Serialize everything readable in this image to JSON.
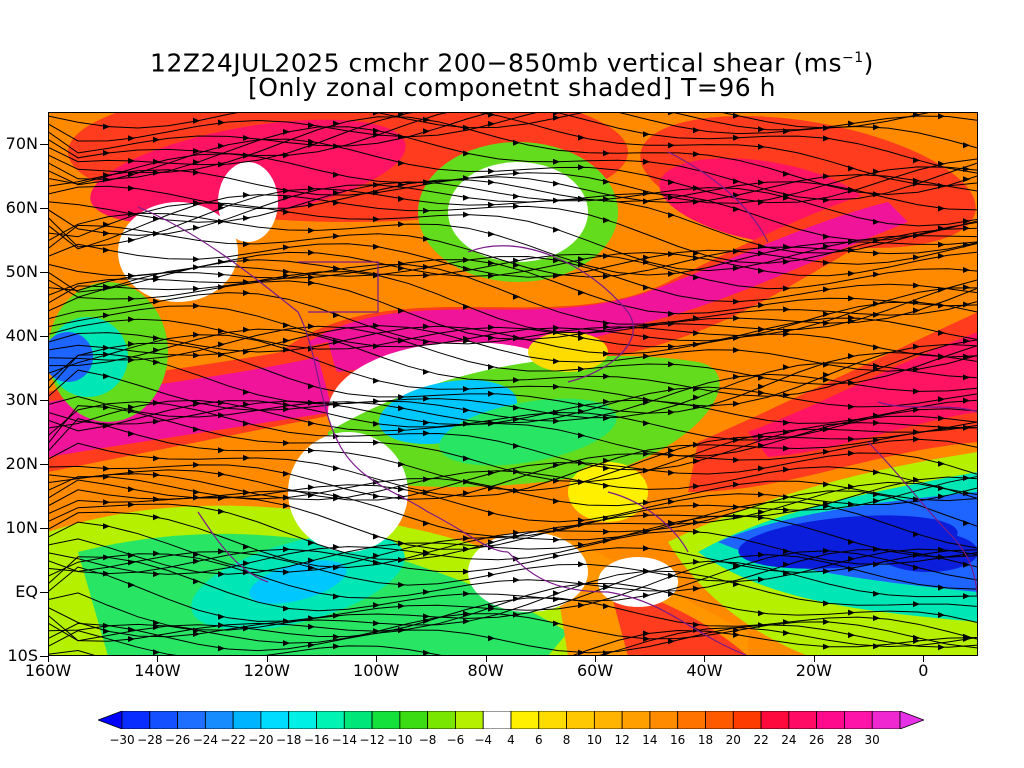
{
  "title": {
    "line1_pre": "12Z24JUL2025 cmchr 200−850mb vertical shear (ms",
    "line1_sup": "−1",
    "line1_post": ")",
    "line2": "[Only zonal componetnt shaded] T=96 h"
  },
  "map": {
    "lat_labels": [
      "70N",
      "60N",
      "50N",
      "40N",
      "30N",
      "20N",
      "10N",
      "EQ",
      "10S"
    ],
    "lat_values": [
      70,
      60,
      50,
      40,
      30,
      20,
      10,
      0,
      -10
    ],
    "lon_labels": [
      "160W",
      "140W",
      "120W",
      "100W",
      "80W",
      "60W",
      "40W",
      "20W",
      "0"
    ],
    "lon_values": [
      -160,
      -140,
      -120,
      -100,
      -80,
      -60,
      -40,
      -20,
      0
    ],
    "lon_range": [
      -160,
      10
    ],
    "lat_range": [
      -10,
      75
    ],
    "field": "zonal component of 200-850mb vertical shear",
    "streamlines": "shear vector streamlines",
    "coastline_color": "#7a1a8a"
  },
  "colorbar": {
    "labels": [
      "-30",
      "-28",
      "-26",
      "-24",
      "-22",
      "-20",
      "-18",
      "-16",
      "-14",
      "-12",
      "-10",
      "-8",
      "-6",
      "-4",
      "4",
      "6",
      "8",
      "10",
      "12",
      "14",
      "16",
      "18",
      "20",
      "22",
      "24",
      "26",
      "28",
      "30"
    ],
    "colors": [
      "#0000ff",
      "#0a2dff",
      "#1450ff",
      "#1e6eff",
      "#168cff",
      "#00b4ff",
      "#00dcff",
      "#00f0e6",
      "#00f5b4",
      "#00e678",
      "#14e13c",
      "#3cdc14",
      "#78e600",
      "#b4f000",
      "#ffffff",
      "#fff000",
      "#ffdc00",
      "#ffc800",
      "#ffb400",
      "#ffa000",
      "#ff8c00",
      "#ff7300",
      "#ff5a00",
      "#ff3c00",
      "#ff0a3c",
      "#ff0a64",
      "#ff0a8c",
      "#ff14aa",
      "#f028d2",
      "#e632e6"
    ]
  }
}
